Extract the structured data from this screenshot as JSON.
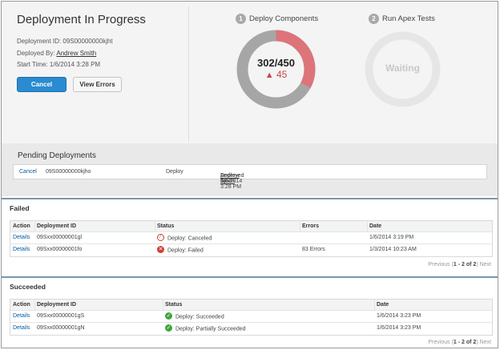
{
  "progress": {
    "title": "Deployment In Progress",
    "id_label": "Deployment ID:",
    "id_value": "09S00000000kjht",
    "by_label": "Deployed By:",
    "by_value": "Andrew Smith",
    "start_label": "Start Time:",
    "start_value": "1/6/2014 3:28 PM",
    "cancel_label": "Cancel",
    "view_errors_label": "View Errors"
  },
  "steps": [
    {
      "number": "1",
      "label": "Deploy Components",
      "value": "302/450",
      "errors": "45",
      "completed": 302,
      "total": 450
    },
    {
      "number": "2",
      "label": "Run Apex Tests",
      "status": "Waiting"
    }
  ],
  "colors": {
    "accent": "#2a8bd0",
    "progress_done": "#a6a6a6",
    "progress_error": "#dd7479",
    "waiting_ring": "#e6e6e6",
    "error": "#c9454b",
    "success": "#3ca63c",
    "section_rule": "#7b95ad"
  },
  "pending": {
    "title": "Pending Deployments",
    "row": {
      "action": "Cancel",
      "id": "09S00000000kjho",
      "type": "Deploy",
      "by_prefix": "Deployed by",
      "by_name": "Andrew Smith",
      "date": ", 1/6/2014 3:28 PM"
    }
  },
  "failed": {
    "title": "Failed",
    "headers": {
      "action": "Action",
      "id": "Deployment ID",
      "status": "Status",
      "errors": "Errors",
      "date": "Date"
    },
    "rows": [
      {
        "action": "Details",
        "id": "09Sxx00000001gl",
        "status": "Deploy: Canceled",
        "icon": "canceled-icon",
        "errors": "",
        "date": "1/6/2014 3:19 PM"
      },
      {
        "action": "Details",
        "id": "09Sxx00000001fo",
        "status": "Deploy: Failed",
        "icon": "failed-icon",
        "errors": "83 Errors",
        "date": "1/3/2014 10:23 AM"
      }
    ],
    "pager": {
      "prev": "Previous",
      "range": "1 - 2 of 2",
      "next": "Next"
    }
  },
  "succeeded": {
    "title": "Succeeded",
    "headers": {
      "action": "Action",
      "id": "Deployment ID",
      "status": "Status",
      "date": "Date"
    },
    "rows": [
      {
        "action": "Details",
        "id": "09Sxx00000001gS",
        "status": "Deploy: Succeeded",
        "icon": "success-icon",
        "date": "1/6/2014 3:23 PM"
      },
      {
        "action": "Details",
        "id": "09Sxx00000001gN",
        "status": "Deploy: Partially Succeeded",
        "icon": "success-icon",
        "date": "1/6/2014 3:23 PM"
      }
    ],
    "pager": {
      "prev": "Previous",
      "range": "1 - 2 of 2",
      "next": "Next"
    }
  }
}
